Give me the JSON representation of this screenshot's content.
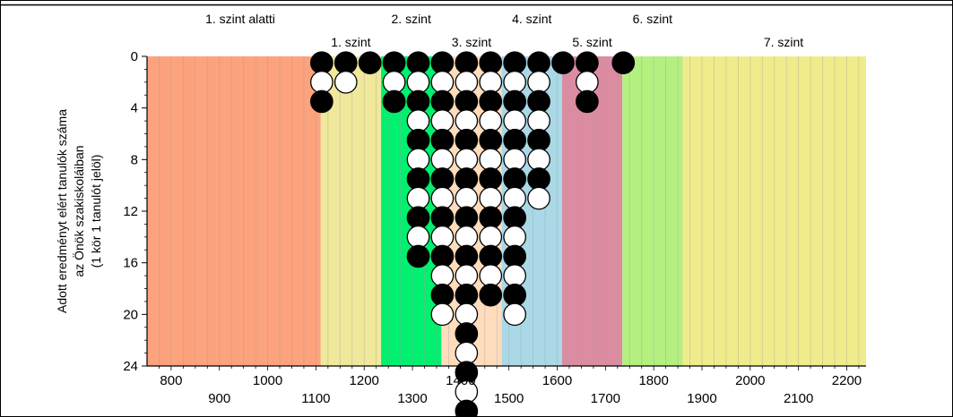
{
  "chart_data": {
    "type": "scatter",
    "title": "",
    "ylabel_lines": [
      "Adott eredményt elért tanulók száma",
      "az Önök szakiskoláiban",
      "(1 kör 1 tanulót jelöl)"
    ],
    "xlim": [
      750,
      2240
    ],
    "ylim": [
      0,
      24
    ],
    "y_inverted": true,
    "y_ticks": [
      0,
      4,
      8,
      12,
      16,
      20,
      24
    ],
    "x_ticks_upper": [
      800,
      1000,
      1200,
      1400,
      1600,
      1800,
      2000,
      2200
    ],
    "x_ticks_lower": [
      900,
      1100,
      1300,
      1500,
      1700,
      1900,
      2100
    ],
    "levels": [
      {
        "label": "1. szint alatti",
        "from": 750,
        "to": 1110,
        "color": "#fca27c",
        "label_row": "top"
      },
      {
        "label": "1. szint",
        "from": 1110,
        "to": 1235,
        "color": "#f0e89a",
        "label_row": "bottom"
      },
      {
        "label": "2. szint",
        "from": 1235,
        "to": 1360,
        "color": "#00f070",
        "label_row": "top"
      },
      {
        "label": "3. szint",
        "from": 1360,
        "to": 1485,
        "color": "#ffdcbc",
        "label_row": "bottom"
      },
      {
        "label": "4. szint",
        "from": 1485,
        "to": 1610,
        "color": "#aad8e6",
        "label_row": "top"
      },
      {
        "label": "5. szint",
        "from": 1610,
        "to": 1735,
        "color": "#dc8ca0",
        "label_row": "bottom"
      },
      {
        "label": "6. szint",
        "from": 1735,
        "to": 1860,
        "color": "#b4f080",
        "label_row": "top"
      },
      {
        "label": "7. szint",
        "from": 1860,
        "to": 2240,
        "color": "#f0ec8c",
        "label_row": "bottom"
      }
    ],
    "columns": [
      {
        "x": 1112,
        "count": 3
      },
      {
        "x": 1162,
        "count": 2
      },
      {
        "x": 1212,
        "count": 1
      },
      {
        "x": 1262,
        "count": 3
      },
      {
        "x": 1312,
        "count": 11
      },
      {
        "x": 1362,
        "count": 14
      },
      {
        "x": 1412,
        "count": 19
      },
      {
        "x": 1462,
        "count": 13
      },
      {
        "x": 1512,
        "count": 14
      },
      {
        "x": 1562,
        "count": 8
      },
      {
        "x": 1612,
        "count": 1
      },
      {
        "x": 1662,
        "count": 3
      },
      {
        "x": 1737,
        "count": 1
      }
    ],
    "marker_colors": {
      "odd": "#000000",
      "even": "#ffffff"
    }
  }
}
